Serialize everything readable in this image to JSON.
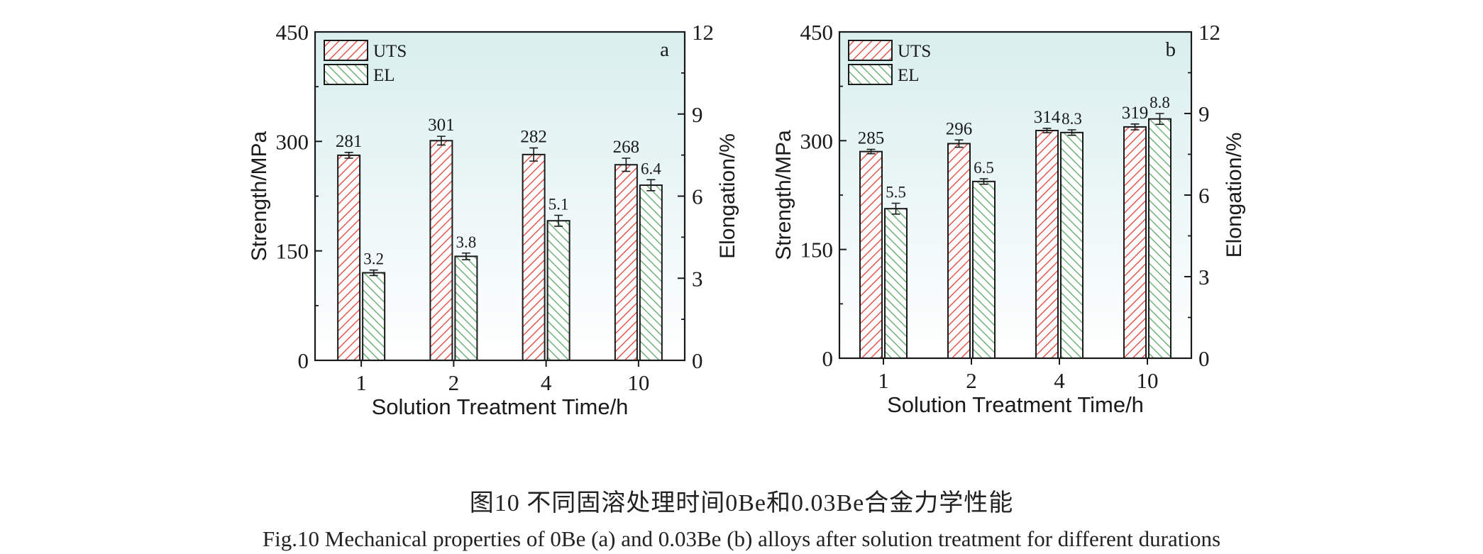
{
  "chart_data": [
    {
      "type": "bar",
      "panel_label": "a",
      "categories": [
        "1",
        "2",
        "4",
        "10"
      ],
      "xlabel": "Solution Treatment Time/h",
      "ylabel": "Strength/MPa",
      "ylabel_right": "Elongation/%",
      "ylim": [
        0,
        450
      ],
      "yticks": [
        "0",
        "150",
        "300",
        "450"
      ],
      "ylim_right": [
        0,
        12
      ],
      "yticks_right": [
        "0",
        "3",
        "6",
        "9",
        "12"
      ],
      "legend_position": "top-left",
      "series": [
        {
          "name": "UTS",
          "axis": "left",
          "values": [
            281,
            301,
            282,
            268
          ],
          "labels": [
            "281",
            "301",
            "282",
            "268"
          ],
          "errors": [
            4,
            6,
            9,
            9
          ],
          "color": "#e05a4f"
        },
        {
          "name": "EL",
          "axis": "right",
          "values": [
            3.2,
            3.8,
            5.1,
            6.4
          ],
          "labels": [
            "3.2",
            "3.8",
            "5.1",
            "6.4"
          ],
          "errors": [
            0.1,
            0.12,
            0.2,
            0.2
          ],
          "color": "#6fb37a"
        }
      ]
    },
    {
      "type": "bar",
      "panel_label": "b",
      "categories": [
        "1",
        "2",
        "4",
        "10"
      ],
      "xlabel": "Solution Treatment Time/h",
      "ylabel": "Strength/MPa",
      "ylabel_right": "Elongation/%",
      "ylim": [
        0,
        450
      ],
      "yticks": [
        "0",
        "150",
        "300",
        "450"
      ],
      "ylim_right": [
        0,
        12
      ],
      "yticks_right": [
        "0",
        "3",
        "6",
        "9",
        "12"
      ],
      "legend_position": "top-left",
      "series": [
        {
          "name": "UTS",
          "axis": "left",
          "values": [
            285,
            296,
            314,
            319
          ],
          "labels": [
            "285",
            "296",
            "314",
            "319"
          ],
          "errors": [
            3,
            5,
            3,
            4
          ],
          "color": "#e05a4f"
        },
        {
          "name": "EL",
          "axis": "right",
          "values": [
            5.5,
            6.5,
            8.3,
            8.8
          ],
          "labels": [
            "5.5",
            "6.5",
            "8.3",
            "8.8"
          ],
          "errors": [
            0.2,
            0.1,
            0.1,
            0.2
          ],
          "color": "#6fb37a"
        }
      ]
    }
  ],
  "caption": {
    "chinese": "图10  不同固溶处理时间0Be和0.03Be合金力学性能",
    "english": "Fig.10  Mechanical properties of 0Be (a) and 0.03Be (b) alloys after solution treatment for different durations"
  }
}
